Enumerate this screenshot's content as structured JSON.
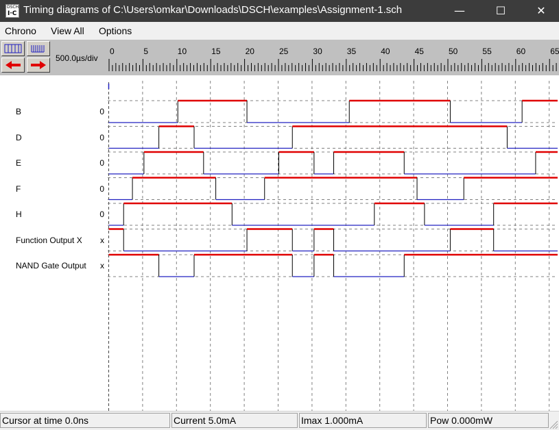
{
  "window": {
    "title": "Timing diagrams of C:\\Users\\omkar\\Downloads\\DSCH\\examples\\Assignment-1.sch",
    "icon_text_top": "DSCH",
    "icon_text_bottom": "I·C",
    "controls": {
      "minimize": "—",
      "maximize": "☐",
      "close": "✕"
    }
  },
  "menu": [
    "Chrono",
    "View All",
    "Options"
  ],
  "toolbar": {
    "scale_label": "500.0µs/div",
    "buttons": [
      "zoom-out-icon",
      "zoom-in-icon",
      "arrow-left-icon",
      "arrow-right-icon"
    ],
    "arrow_color": "#e00000"
  },
  "ruler": {
    "ticks": [
      "0",
      "5",
      "10",
      "15",
      "20",
      "25",
      "30",
      "35",
      "40",
      "45",
      "50",
      "55",
      "60",
      "65"
    ]
  },
  "colors": {
    "high": "#e00000",
    "low": "#2020c0",
    "grid": "#808080"
  },
  "signals": [
    {
      "name": "B",
      "value": "0",
      "t0": 0,
      "transitions": [
        10.2,
        20.4,
        35.5,
        50.4,
        61.0
      ]
    },
    {
      "name": "D",
      "value": "0",
      "t0": 0,
      "transitions": [
        7.4,
        12.6,
        27.1,
        58.8
      ]
    },
    {
      "name": "E",
      "value": "0",
      "t0": 0,
      "transitions": [
        5.2,
        14.0,
        25.1,
        30.3,
        33.2,
        43.6,
        63.0
      ]
    },
    {
      "name": "F",
      "value": "0",
      "t0": 0,
      "transitions": [
        3.5,
        15.8,
        23.0,
        45.5,
        52.4
      ]
    },
    {
      "name": "H",
      "value": "0",
      "t0": 0,
      "transitions": [
        2.2,
        18.2,
        39.2,
        46.6,
        56.8
      ]
    },
    {
      "name": "Function Output X",
      "value": "x",
      "t0": 1,
      "transitions": [
        2.2,
        20.4,
        27.1,
        30.3,
        33.2,
        50.4,
        56.8
      ]
    },
    {
      "name": "NAND Gate Output",
      "value": "x",
      "t0": 1,
      "transitions": [
        7.4,
        12.6,
        27.1,
        30.3,
        33.2,
        43.6
      ]
    }
  ],
  "status": {
    "cursor": "Cursor at time  0.0ns",
    "current": "Current  5.0mA",
    "imax": "Imax 1.000mA",
    "pow": "Pow 0.000mW"
  }
}
